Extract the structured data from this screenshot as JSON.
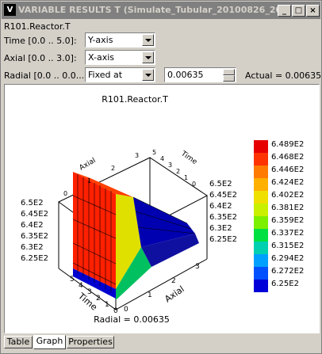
{
  "window": {
    "title": "VARIABLE RESULTS T (Simulate_Tubular_20100826_20",
    "icon": "V",
    "min_icon": "minimize-icon",
    "max_icon": "maximize-icon",
    "close_icon": "close-icon"
  },
  "variable_name": "R101.Reactor.T",
  "controls": {
    "time_label": "Time [0.0 .. 5.0]:",
    "time_value": "Y-axis",
    "axial_label": "Axial [0.0 .. 3.0]:",
    "axial_value": "X-axis",
    "radial_label": "Radial [0.0 .. 0.0...",
    "radial_mode": "Fixed at",
    "radial_value": "0.00635",
    "actual_text": "Actual = 0.00635"
  },
  "plot": {
    "title": "R101.Reactor.T",
    "footer": "Radial = 0.00635",
    "colorbar_labels": [
      "6.489E2",
      "6.468E2",
      "6.446E2",
      "6.424E2",
      "6.402E2",
      "6.381E2",
      "6.359E2",
      "6.337E2",
      "6.315E2",
      "6.294E2",
      "6.272E2",
      "6.25E2"
    ],
    "colorbar_colors": [
      "#e60000",
      "#ff3300",
      "#ff7a00",
      "#ffb000",
      "#f0e000",
      "#c8f000",
      "#7cf000",
      "#00e040",
      "#00d0b0",
      "#00a0ff",
      "#0050ff",
      "#0000d8"
    ],
    "axis_left_labels": [
      "6.5E2",
      "6.45E2",
      "6.4E2",
      "6.35E2",
      "6.3E2",
      "6.25E2"
    ],
    "axis_right_labels": [
      "6.5E2",
      "6.45E2",
      "6.4E2",
      "6.35E2",
      "6.3E2",
      "6.25E2"
    ],
    "time_ticks": [
      "5",
      "4",
      "3",
      "2",
      "1",
      "0"
    ],
    "axial_ticks": [
      "0",
      "1",
      "2",
      "3"
    ],
    "top_axial_ticks": [
      "0",
      "1",
      "2",
      "3"
    ],
    "top_time_ticks": [
      "5",
      "4",
      "3",
      "2",
      "1",
      "0"
    ],
    "time_axis_label": "Time",
    "axial_axis_label": "Axial"
  },
  "tabs": [
    "Table",
    "Graph",
    "Properties"
  ],
  "active_tab": "Graph"
}
